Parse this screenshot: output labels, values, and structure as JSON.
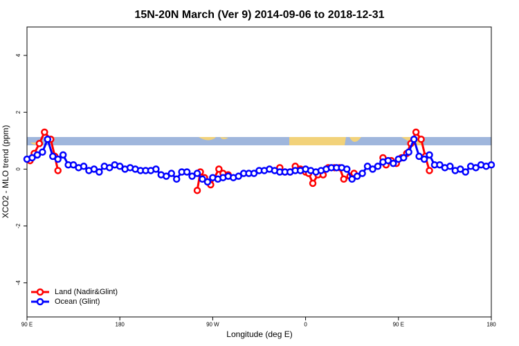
{
  "chart_data": {
    "type": "line",
    "title": "15N-20N March (Ver 9)   2014-09-06 to 2018-12-31",
    "x_label": "Longitude (deg E)",
    "y_label": "XCO2 - MLO trend (ppm)",
    "xlim": [
      90,
      540
    ],
    "ylim": [
      -5.2,
      5
    ],
    "xticks": [
      {
        "value": 90,
        "label": "90 E"
      },
      180,
      {
        "value": 270,
        "label": "90 W"
      },
      {
        "value": 360,
        "label": "0"
      },
      {
        "value": 450,
        "label": "90 E"
      },
      {
        "value": 540,
        "label": "180"
      }
    ],
    "yticks": [
      -4,
      -2,
      0,
      2,
      4
    ],
    "legend": "bottom-left",
    "series": [
      {
        "name": "Land (Nadir&Glint)",
        "color": "#ff0000",
        "x": [
          93,
          97,
          102,
          107,
          113,
          117,
          120,
          null,
          255,
          258,
          262,
          268,
          276,
          280,
          285,
          null,
          335,
          340,
          345,
          350,
          355,
          360,
          363,
          367,
          372,
          377,
          382,
          388,
          393,
          397,
          403,
          407,
          null,
          435,
          438,
          443,
          448,
          453,
          458,
          462,
          467,
          472,
          476,
          480
        ],
        "values": [
          0.3,
          0.55,
          0.9,
          1.3,
          1.05,
          0.45,
          -0.05,
          null,
          -0.75,
          -0.1,
          -0.3,
          -0.55,
          0,
          -0.15,
          -0.2,
          null,
          0.05,
          -0.1,
          -0.1,
          0.1,
          0,
          -0.1,
          -0.15,
          -0.5,
          -0.2,
          -0.2,
          0.05,
          0.05,
          0.05,
          -0.35,
          -0.25,
          -0.15,
          null,
          0.4,
          0.15,
          0.3,
          0.2,
          0.4,
          0.55,
          0.9,
          1.3,
          1.05,
          0.45,
          -0.05
        ]
      },
      {
        "name": "Ocean (Glint)",
        "color": "#0000ff",
        "x": [
          90,
          95,
          100,
          105,
          110,
          115,
          120,
          125,
          130,
          135,
          140,
          145,
          150,
          155,
          160,
          165,
          170,
          175,
          180,
          185,
          190,
          195,
          200,
          205,
          210,
          215,
          220,
          225,
          230,
          235,
          240,
          245,
          250,
          255,
          260,
          265,
          270,
          275,
          280,
          285,
          290,
          295,
          300,
          305,
          310,
          315,
          320,
          325,
          330,
          335,
          340,
          345,
          350,
          355,
          360,
          365,
          370,
          375,
          380,
          385,
          390,
          395,
          400,
          405,
          410,
          415,
          420,
          425,
          430,
          435,
          440,
          445,
          450,
          455,
          460,
          465,
          470,
          475,
          480,
          485,
          490,
          495,
          500,
          505,
          510,
          515,
          520,
          525,
          530,
          535,
          540
        ],
        "values": [
          0.35,
          0.4,
          0.5,
          0.6,
          1.05,
          0.45,
          0.35,
          0.5,
          0.15,
          0.15,
          0.05,
          0.1,
          -0.05,
          0,
          -0.1,
          0.1,
          0.05,
          0.15,
          0.1,
          0,
          0.05,
          0,
          -0.05,
          -0.05,
          -0.05,
          0,
          -0.2,
          -0.25,
          -0.15,
          -0.35,
          -0.1,
          -0.1,
          -0.25,
          -0.15,
          -0.35,
          -0.45,
          -0.3,
          -0.35,
          -0.3,
          -0.25,
          -0.3,
          -0.25,
          -0.15,
          -0.15,
          -0.15,
          -0.05,
          -0.05,
          0,
          -0.05,
          -0.1,
          -0.1,
          -0.1,
          -0.05,
          -0.05,
          0,
          -0.05,
          -0.1,
          -0.05,
          0,
          0.05,
          0.05,
          0.05,
          0,
          -0.35,
          -0.25,
          -0.15,
          0.1,
          0,
          0.1,
          0.25,
          0.3,
          0.2,
          0.35,
          0.4,
          0.6,
          1.05,
          0.45,
          0.35,
          0.5,
          0.15,
          0.15,
          0.05,
          0.1,
          -0.05,
          0,
          -0.1,
          0.1,
          0.05,
          0.15,
          0.1,
          0.15
        ]
      }
    ]
  }
}
